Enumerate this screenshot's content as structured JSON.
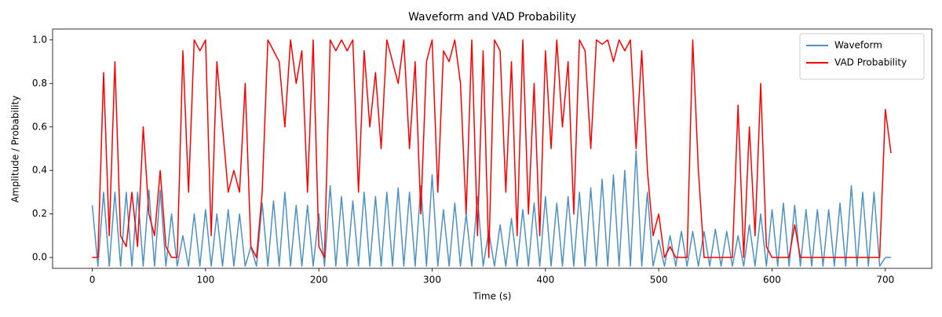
{
  "chart_data": {
    "type": "line",
    "title": "Waveform and VAD Probability",
    "xlabel": "Time (s)",
    "ylabel": "Amplitude / Probability",
    "x": [
      0,
      5,
      10,
      15,
      20,
      25,
      30,
      35,
      40,
      45,
      50,
      55,
      60,
      65,
      70,
      75,
      80,
      85,
      90,
      95,
      100,
      105,
      110,
      115,
      120,
      125,
      130,
      135,
      140,
      145,
      150,
      155,
      160,
      165,
      170,
      175,
      180,
      185,
      190,
      195,
      200,
      205,
      210,
      215,
      220,
      225,
      230,
      235,
      240,
      245,
      250,
      255,
      260,
      265,
      270,
      275,
      280,
      285,
      290,
      295,
      300,
      305,
      310,
      315,
      320,
      325,
      330,
      335,
      340,
      345,
      350,
      355,
      360,
      365,
      370,
      375,
      380,
      385,
      390,
      395,
      400,
      405,
      410,
      415,
      420,
      425,
      430,
      435,
      440,
      445,
      450,
      455,
      460,
      465,
      470,
      475,
      480,
      485,
      490,
      495,
      500,
      505,
      510,
      515,
      520,
      525,
      530,
      535,
      540,
      545,
      550,
      555,
      560,
      565,
      570,
      575,
      580,
      585,
      590,
      595,
      600,
      605,
      610,
      615,
      620,
      625,
      630,
      635,
      640,
      645,
      650,
      655,
      660,
      665,
      670,
      675,
      680,
      685,
      690,
      695,
      700,
      705
    ],
    "series": [
      {
        "name": "Waveform",
        "color": "#4c91c4",
        "values": [
          0.24,
          -0.04,
          0.3,
          -0.04,
          0.3,
          -0.04,
          0.3,
          -0.04,
          0.3,
          -0.04,
          0.31,
          -0.04,
          0.31,
          -0.04,
          0.2,
          -0.04,
          0.1,
          -0.04,
          0.2,
          -0.04,
          0.22,
          -0.04,
          0.2,
          -0.04,
          0.22,
          -0.04,
          0.2,
          -0.04,
          0.05,
          -0.04,
          0.25,
          -0.04,
          0.26,
          -0.04,
          0.3,
          -0.04,
          0.24,
          -0.04,
          0.24,
          -0.04,
          0.2,
          -0.04,
          0.33,
          -0.04,
          0.28,
          -0.04,
          0.26,
          -0.04,
          0.3,
          -0.04,
          0.28,
          -0.04,
          0.3,
          -0.04,
          0.32,
          -0.04,
          0.3,
          -0.04,
          0.33,
          -0.04,
          0.38,
          -0.04,
          0.22,
          -0.04,
          0.25,
          -0.04,
          0.2,
          -0.04,
          0.28,
          -0.04,
          0.12,
          -0.04,
          0.15,
          -0.04,
          0.18,
          -0.04,
          0.22,
          -0.04,
          0.25,
          -0.04,
          0.28,
          -0.04,
          0.25,
          -0.04,
          0.28,
          -0.04,
          0.3,
          -0.04,
          0.32,
          -0.04,
          0.36,
          -0.04,
          0.38,
          -0.04,
          0.4,
          -0.04,
          0.49,
          -0.04,
          0.3,
          -0.04,
          0.08,
          -0.04,
          0.1,
          -0.04,
          0.12,
          -0.04,
          0.12,
          -0.04,
          0.12,
          -0.04,
          0.13,
          -0.04,
          0.12,
          -0.04,
          0.1,
          -0.04,
          0.15,
          -0.04,
          0.2,
          -0.04,
          0.22,
          -0.04,
          0.25,
          -0.04,
          0.24,
          -0.04,
          0.22,
          -0.04,
          0.22,
          -0.04,
          0.22,
          -0.04,
          0.25,
          -0.04,
          0.33,
          -0.04,
          0.3,
          -0.04,
          0.3,
          -0.04,
          0.0,
          0.0
        ]
      },
      {
        "name": "VAD Probability",
        "color": "#ff0000",
        "values": [
          0.0,
          0.0,
          0.85,
          0.1,
          0.9,
          0.1,
          0.05,
          0.3,
          0.05,
          0.6,
          0.2,
          0.1,
          0.4,
          0.05,
          0.0,
          0.0,
          0.95,
          0.3,
          1.0,
          0.95,
          1.0,
          0.1,
          0.9,
          0.6,
          0.3,
          0.4,
          0.3,
          0.8,
          0.05,
          0.0,
          0.3,
          1.0,
          0.95,
          0.9,
          0.6,
          1.0,
          0.8,
          0.95,
          0.3,
          1.0,
          0.05,
          0.0,
          1.0,
          0.95,
          1.0,
          0.95,
          1.0,
          0.3,
          0.95,
          0.6,
          0.85,
          0.5,
          1.0,
          0.9,
          0.8,
          1.0,
          0.5,
          0.9,
          0.2,
          0.9,
          1.0,
          0.3,
          0.95,
          0.9,
          1.0,
          0.8,
          0.2,
          1.0,
          0.1,
          0.95,
          0.0,
          1.0,
          0.95,
          0.3,
          0.9,
          0.1,
          1.0,
          0.2,
          0.8,
          0.1,
          0.95,
          0.5,
          1.0,
          0.6,
          0.9,
          0.2,
          1.0,
          0.95,
          0.5,
          1.0,
          0.98,
          1.0,
          0.9,
          1.0,
          0.95,
          1.0,
          0.5,
          0.95,
          0.4,
          0.1,
          0.2,
          0.0,
          0.05,
          0.0,
          0.0,
          0.0,
          1.0,
          0.4,
          0.0,
          0.0,
          0.0,
          0.0,
          0.0,
          0.0,
          0.7,
          0.0,
          0.6,
          0.1,
          0.8,
          0.05,
          0.0,
          0.0,
          0.0,
          0.0,
          0.15,
          0.0,
          0.0,
          0.0,
          0.0,
          0.0,
          0.0,
          0.0,
          0.0,
          0.0,
          0.0,
          0.0,
          0.0,
          0.0,
          0.0,
          0.0,
          0.68,
          0.48
        ]
      }
    ],
    "xlim": [
      -35,
      741
    ],
    "xticks": [
      0,
      100,
      200,
      300,
      400,
      500,
      600,
      700
    ],
    "ylim": [
      -0.05,
      1.05
    ],
    "yticks": [
      {
        "value": 0.0,
        "label": "0.0"
      },
      0.2,
      0.4,
      0.6,
      0.8,
      {
        "value": 1.0,
        "label": "1.0"
      }
    ],
    "legend": "upper right"
  }
}
